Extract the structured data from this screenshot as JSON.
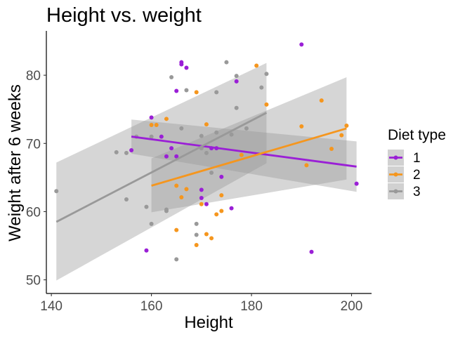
{
  "chart_data": {
    "type": "scatter",
    "title": "Height vs. weight",
    "xlabel": "Height",
    "ylabel": "Weight after 6 weeks",
    "xlim": [
      139,
      204
    ],
    "ylim": [
      48,
      86.5
    ],
    "xticks": [
      140,
      160,
      180,
      200
    ],
    "yticks": [
      50,
      60,
      70,
      80
    ],
    "grid": false,
    "legend": {
      "title": "Diet type",
      "position": "right"
    },
    "series": [
      {
        "name": "1",
        "color": "#9a1fd6",
        "points": [
          [
            156,
            69
          ],
          [
            160,
            73.8
          ],
          [
            162,
            71
          ],
          [
            163,
            68.1
          ],
          [
            164,
            69.3
          ],
          [
            165,
            77.7
          ],
          [
            165,
            68.1
          ],
          [
            166,
            81.9
          ],
          [
            166,
            81.6
          ],
          [
            167,
            81.1
          ],
          [
            170,
            62
          ],
          [
            170,
            63.2
          ],
          [
            171,
            61.1
          ],
          [
            172,
            69.3
          ],
          [
            173,
            69.3
          ],
          [
            174,
            65.1
          ],
          [
            176,
            60.5
          ],
          [
            177,
            79.1
          ],
          [
            159,
            54.3
          ],
          [
            190,
            84.5
          ],
          [
            192,
            54.1
          ],
          [
            201,
            64.1
          ]
        ],
        "fit": {
          "x": [
            156,
            201
          ],
          "y": [
            71,
            66.6
          ],
          "ci_upper": [
            73.5,
            70.3
          ],
          "ci_lower": [
            68.5,
            62.9
          ]
        }
      },
      {
        "name": "2",
        "color": "#f5961e",
        "points": [
          [
            160,
            72.7
          ],
          [
            161,
            72.7
          ],
          [
            163,
            73.6
          ],
          [
            165,
            63.8
          ],
          [
            165,
            57.3
          ],
          [
            166,
            62.1
          ],
          [
            167,
            63.3
          ],
          [
            169,
            77.5
          ],
          [
            169,
            55.1
          ],
          [
            170,
            61.1
          ],
          [
            171,
            72.8
          ],
          [
            171,
            56.7
          ],
          [
            172,
            56.1
          ],
          [
            173,
            59.6
          ],
          [
            174,
            62.4
          ],
          [
            174,
            60.1
          ],
          [
            178,
            68.3
          ],
          [
            181,
            81.4
          ],
          [
            183,
            75.7
          ],
          [
            190,
            72.5
          ],
          [
            191,
            66.8
          ],
          [
            194,
            76.3
          ],
          [
            196,
            69.2
          ],
          [
            198,
            71.2
          ],
          [
            199,
            72.6
          ]
        ],
        "fit": {
          "x": [
            160,
            199
          ],
          "y": [
            63.8,
            72.2
          ],
          "ci_upper": [
            67.8,
            79.7
          ],
          "ci_lower": [
            59.9,
            64.7
          ]
        }
      },
      {
        "name": "3",
        "color": "#999999",
        "points": [
          [
            141,
            63
          ],
          [
            153,
            68.7
          ],
          [
            155,
            61.8
          ],
          [
            155,
            68.6
          ],
          [
            157,
            71
          ],
          [
            159,
            60.7
          ],
          [
            160,
            58.2
          ],
          [
            160,
            71
          ],
          [
            163,
            60.3
          ],
          [
            163,
            60.1
          ],
          [
            164,
            79.7
          ],
          [
            165,
            53
          ],
          [
            166,
            72.2
          ],
          [
            167,
            77.8
          ],
          [
            169,
            58.2
          ],
          [
            169,
            56.6
          ],
          [
            170,
            71.1
          ],
          [
            170,
            69.3
          ],
          [
            171,
            68.6
          ],
          [
            172,
            65.7
          ],
          [
            173,
            77.5
          ],
          [
            173,
            71.6
          ],
          [
            175,
            81.9
          ],
          [
            176,
            71.3
          ],
          [
            177,
            79.9
          ],
          [
            177,
            75.2
          ],
          [
            179,
            72.2
          ],
          [
            182,
            78.2
          ],
          [
            183,
            80.2
          ]
        ],
        "fit": {
          "x": [
            141,
            183
          ],
          "y": [
            58.5,
            74.5
          ],
          "ci_upper": [
            67.2,
            81.8
          ],
          "ci_lower": [
            49.9,
            67.1
          ]
        }
      }
    ]
  }
}
